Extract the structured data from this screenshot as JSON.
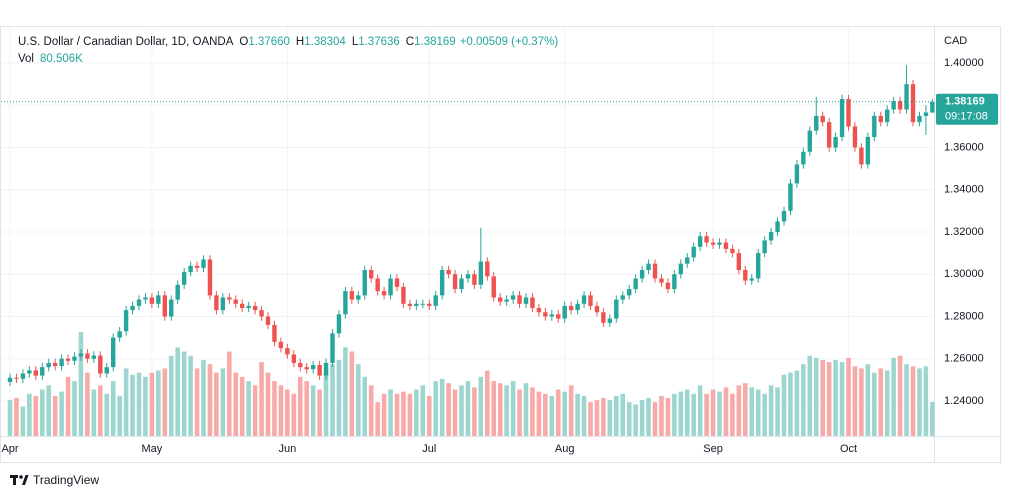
{
  "header": {
    "symbol": "U.S. Dollar / Canadian Dollar, 1D, OANDA",
    "o_label": "O",
    "o": "1.37660",
    "h_label": "H",
    "h": "1.38304",
    "l_label": "L",
    "l": "1.37636",
    "c_label": "C",
    "c": "1.38169",
    "change": "+0.00509 (+0.37%)",
    "vol_label": "Vol",
    "vol_value": "80.506K"
  },
  "brand": "TradingView",
  "chart_data": {
    "type": "candlestick",
    "currency": "CAD",
    "last_price_label": "1.38169",
    "countdown": "09:17:08",
    "up_color": "#26a69a",
    "down_color": "#ef5350",
    "volume_up_color": "#9dd6cf",
    "volume_down_color": "#f7aaa8",
    "ylim": [
      1.2234,
      1.4166
    ],
    "yticks": [
      {
        "value": 1.24,
        "label": "1.24000"
      },
      {
        "value": 1.26,
        "label": "1.26000"
      },
      {
        "value": 1.28,
        "label": "1.28000"
      },
      {
        "value": 1.3,
        "label": "1.30000"
      },
      {
        "value": 1.32,
        "label": "1.32000"
      },
      {
        "value": 1.34,
        "label": "1.34000"
      },
      {
        "value": 1.36,
        "label": "1.36000"
      },
      {
        "value": 1.38,
        "label": "1.38000"
      },
      {
        "value": 1.4,
        "label": "1.40000"
      }
    ],
    "months": [
      {
        "label": "Apr",
        "candle": 0
      },
      {
        "label": "May",
        "candle": 22
      },
      {
        "label": "Jun",
        "candle": 43
      },
      {
        "label": "Jul",
        "candle": 65
      },
      {
        "label": "Aug",
        "candle": 86
      },
      {
        "label": "Sep",
        "candle": 109
      },
      {
        "label": "Oct",
        "candle": 130
      }
    ],
    "open": [
      1.249,
      1.251,
      1.2505,
      1.253,
      1.2545,
      1.252,
      1.256,
      1.258,
      1.2565,
      1.26,
      1.259,
      1.261,
      1.2625,
      1.26,
      1.2615,
      1.253,
      1.256,
      1.27,
      1.273,
      1.283,
      1.285,
      1.288,
      1.289,
      1.286,
      1.29,
      1.28,
      1.288,
      1.295,
      1.301,
      1.304,
      1.303,
      1.307,
      1.29,
      1.283,
      1.289,
      1.288,
      1.286,
      1.284,
      1.285,
      1.283,
      1.28,
      1.276,
      1.268,
      1.265,
      1.262,
      1.258,
      1.256,
      1.255,
      1.257,
      1.252,
      1.258,
      1.272,
      1.281,
      1.292,
      1.288,
      1.29,
      1.302,
      1.298,
      1.292,
      1.29,
      1.298,
      1.294,
      1.286,
      1.285,
      1.286,
      1.286,
      1.285,
      1.29,
      1.302,
      1.3,
      1.293,
      1.298,
      1.3,
      1.295,
      1.306,
      1.299,
      1.289,
      1.287,
      1.288,
      1.29,
      1.286,
      1.289,
      1.284,
      1.282,
      1.28,
      1.281,
      1.279,
      1.285,
      1.283,
      1.286,
      1.29,
      1.285,
      1.282,
      1.277,
      1.279,
      1.288,
      1.29,
      1.293,
      1.298,
      1.302,
      1.305,
      1.298,
      1.296,
      1.293,
      1.3,
      1.305,
      1.308,
      1.313,
      1.318,
      1.315,
      1.314,
      1.315,
      1.312,
      1.31,
      1.302,
      1.297,
      1.298,
      1.31,
      1.316,
      1.32,
      1.325,
      1.33,
      1.343,
      1.352,
      1.358,
      1.368,
      1.375,
      1.372,
      1.36,
      1.365,
      1.383,
      1.37,
      1.36,
      1.352,
      1.365,
      1.375,
      1.372,
      1.378,
      1.382,
      1.378,
      1.39,
      1.372,
      1.375,
      1.3766
    ],
    "high": [
      1.253,
      1.253,
      1.255,
      1.2565,
      1.2565,
      1.258,
      1.26,
      1.26,
      1.262,
      1.262,
      1.263,
      1.2645,
      1.2645,
      1.2635,
      1.2635,
      1.258,
      1.272,
      1.275,
      1.285,
      1.287,
      1.29,
      1.291,
      1.291,
      1.292,
      1.292,
      1.29,
      1.297,
      1.303,
      1.306,
      1.306,
      1.309,
      1.309,
      1.292,
      1.291,
      1.291,
      1.29,
      1.288,
      1.287,
      1.287,
      1.285,
      1.282,
      1.278,
      1.27,
      1.267,
      1.264,
      1.26,
      1.258,
      1.259,
      1.259,
      1.26,
      1.274,
      1.283,
      1.294,
      1.294,
      1.292,
      1.304,
      1.304,
      1.3,
      1.294,
      1.3,
      1.3,
      1.296,
      1.288,
      1.288,
      1.288,
      1.288,
      1.292,
      1.304,
      1.304,
      1.302,
      1.3,
      1.302,
      1.302,
      1.322,
      1.308,
      1.301,
      1.291,
      1.29,
      1.292,
      1.292,
      1.291,
      1.291,
      1.286,
      1.284,
      1.283,
      1.283,
      1.287,
      1.287,
      1.288,
      1.292,
      1.292,
      1.287,
      1.284,
      1.281,
      1.29,
      1.292,
      1.295,
      1.3,
      1.304,
      1.307,
      1.307,
      1.3,
      1.298,
      1.302,
      1.307,
      1.31,
      1.315,
      1.32,
      1.32,
      1.317,
      1.317,
      1.317,
      1.314,
      1.312,
      1.304,
      1.3,
      1.312,
      1.318,
      1.322,
      1.327,
      1.332,
      1.345,
      1.354,
      1.36,
      1.37,
      1.384,
      1.377,
      1.374,
      1.367,
      1.385,
      1.385,
      1.372,
      1.362,
      1.367,
      1.377,
      1.377,
      1.38,
      1.384,
      1.384,
      1.399,
      1.392,
      1.377,
      1.38,
      1.38304
    ],
    "low": [
      1.247,
      1.2485,
      1.2485,
      1.251,
      1.25,
      1.25,
      1.254,
      1.2545,
      1.2545,
      1.257,
      1.257,
      1.259,
      1.258,
      1.258,
      1.251,
      1.251,
      1.254,
      1.268,
      1.271,
      1.281,
      1.283,
      1.286,
      1.284,
      1.284,
      1.278,
      1.278,
      1.286,
      1.293,
      1.299,
      1.301,
      1.301,
      1.288,
      1.281,
      1.281,
      1.286,
      1.284,
      1.282,
      1.282,
      1.281,
      1.278,
      1.274,
      1.266,
      1.263,
      1.26,
      1.256,
      1.254,
      1.253,
      1.253,
      1.25,
      1.25,
      1.256,
      1.27,
      1.279,
      1.286,
      1.286,
      1.288,
      1.296,
      1.29,
      1.288,
      1.288,
      1.292,
      1.284,
      1.283,
      1.283,
      1.284,
      1.283,
      1.283,
      1.288,
      1.298,
      1.291,
      1.291,
      1.296,
      1.293,
      1.293,
      1.297,
      1.287,
      1.285,
      1.285,
      1.286,
      1.284,
      1.284,
      1.282,
      1.28,
      1.278,
      1.278,
      1.277,
      1.277,
      1.281,
      1.281,
      1.284,
      1.283,
      1.28,
      1.275,
      1.275,
      1.277,
      1.286,
      1.288,
      1.291,
      1.296,
      1.3,
      1.296,
      1.294,
      1.291,
      1.291,
      1.298,
      1.303,
      1.306,
      1.311,
      1.313,
      1.312,
      1.312,
      1.31,
      1.308,
      1.3,
      1.295,
      1.295,
      1.296,
      1.308,
      1.314,
      1.318,
      1.323,
      1.328,
      1.341,
      1.35,
      1.356,
      1.366,
      1.37,
      1.358,
      1.358,
      1.363,
      1.368,
      1.358,
      1.35,
      1.35,
      1.363,
      1.37,
      1.37,
      1.376,
      1.376,
      1.376,
      1.37,
      1.37,
      1.366,
      1.37636
    ],
    "close": [
      1.251,
      1.2505,
      1.253,
      1.2545,
      1.252,
      1.256,
      1.258,
      1.2565,
      1.26,
      1.259,
      1.261,
      1.2625,
      1.26,
      1.2615,
      1.253,
      1.256,
      1.27,
      1.273,
      1.283,
      1.285,
      1.288,
      1.289,
      1.286,
      1.29,
      1.28,
      1.288,
      1.295,
      1.301,
      1.304,
      1.303,
      1.307,
      1.29,
      1.283,
      1.289,
      1.288,
      1.286,
      1.284,
      1.285,
      1.283,
      1.28,
      1.276,
      1.268,
      1.265,
      1.262,
      1.258,
      1.256,
      1.255,
      1.257,
      1.252,
      1.258,
      1.272,
      1.281,
      1.292,
      1.288,
      1.29,
      1.302,
      1.298,
      1.292,
      1.29,
      1.298,
      1.294,
      1.286,
      1.285,
      1.286,
      1.286,
      1.285,
      1.29,
      1.302,
      1.3,
      1.293,
      1.298,
      1.3,
      1.295,
      1.306,
      1.299,
      1.289,
      1.287,
      1.288,
      1.29,
      1.286,
      1.289,
      1.284,
      1.282,
      1.28,
      1.281,
      1.279,
      1.285,
      1.283,
      1.286,
      1.29,
      1.285,
      1.282,
      1.277,
      1.279,
      1.288,
      1.29,
      1.293,
      1.298,
      1.302,
      1.305,
      1.298,
      1.296,
      1.293,
      1.3,
      1.305,
      1.308,
      1.313,
      1.318,
      1.315,
      1.314,
      1.315,
      1.312,
      1.31,
      1.302,
      1.297,
      1.298,
      1.31,
      1.316,
      1.32,
      1.325,
      1.33,
      1.343,
      1.352,
      1.358,
      1.368,
      1.375,
      1.372,
      1.36,
      1.365,
      1.383,
      1.37,
      1.36,
      1.352,
      1.365,
      1.375,
      1.372,
      1.378,
      1.382,
      1.378,
      1.39,
      1.372,
      1.375,
      1.3766,
      1.38169
    ],
    "volume": [
      85,
      90,
      70,
      100,
      95,
      110,
      120,
      95,
      105,
      140,
      130,
      246,
      150,
      110,
      120,
      100,
      130,
      95,
      160,
      145,
      150,
      140,
      150,
      155,
      160,
      190,
      210,
      200,
      190,
      160,
      180,
      170,
      150,
      160,
      200,
      150,
      140,
      130,
      120,
      175,
      150,
      130,
      120,
      110,
      100,
      140,
      130,
      120,
      110,
      150,
      170,
      180,
      210,
      200,
      170,
      140,
      120,
      80,
      100,
      110,
      100,
      105,
      100,
      110,
      120,
      95,
      130,
      135,
      125,
      110,
      120,
      130,
      115,
      140,
      155,
      130,
      125,
      120,
      130,
      110,
      125,
      115,
      105,
      100,
      95,
      110,
      105,
      120,
      100,
      95,
      80,
      85,
      90,
      85,
      95,
      100,
      80,
      75,
      85,
      90,
      80,
      95,
      90,
      100,
      105,
      110,
      100,
      120,
      100,
      110,
      105,
      115,
      100,
      120,
      125,
      115,
      110,
      100,
      120,
      115,
      145,
      150,
      155,
      170,
      190,
      185,
      180,
      175,
      180,
      175,
      185,
      165,
      160,
      170,
      150,
      160,
      155,
      185,
      190,
      170,
      165,
      160,
      165,
      80.506
    ]
  }
}
